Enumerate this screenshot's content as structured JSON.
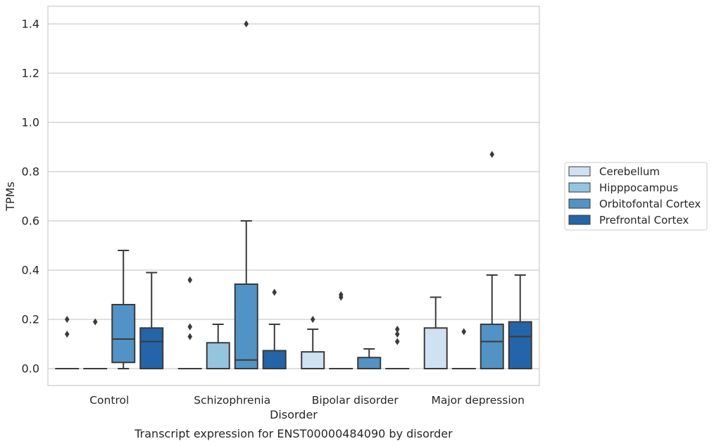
{
  "chart_data": {
    "type": "boxplot",
    "title": "",
    "caption": "Transcript expression for ENST00000484090 by disorder",
    "xlabel": "Disorder",
    "ylabel": "TPMs",
    "ylim": [
      -0.07,
      1.47
    ],
    "yticks": [
      0.0,
      0.2,
      0.4,
      0.6,
      0.8,
      1.0,
      1.2,
      1.4
    ],
    "ytick_labels": [
      "0.0",
      "0.2",
      "0.4",
      "0.6",
      "0.8",
      "1.0",
      "1.2",
      "1.4"
    ],
    "categories": [
      "Control",
      "Schizophrenia",
      "Bipolar disorder",
      "Major depression"
    ],
    "grid": "horizontal",
    "legend_position": "right",
    "series": [
      {
        "name": "Cerebellum",
        "color": "#d0e1f2",
        "boxes": [
          {
            "q1": 0,
            "median": 0,
            "q3": 0,
            "whislo": 0,
            "whishi": 0,
            "fliers": [
              0.14,
              0.2
            ]
          },
          {
            "q1": 0,
            "median": 0,
            "q3": 0,
            "whislo": 0,
            "whishi": 0,
            "fliers": [
              0.13,
              0.17,
              0.36
            ]
          },
          {
            "q1": 0,
            "median": 0,
            "q3": 0.068,
            "whislo": 0,
            "whishi": 0.16,
            "fliers": [
              0.2
            ]
          },
          {
            "q1": 0,
            "median": 0,
            "q3": 0.165,
            "whislo": 0,
            "whishi": 0.29,
            "fliers": []
          }
        ]
      },
      {
        "name": "Hipppocampus",
        "color": "#94c4df",
        "boxes": [
          {
            "q1": 0,
            "median": 0,
            "q3": 0,
            "whislo": 0,
            "whishi": 0,
            "fliers": [
              0.19
            ]
          },
          {
            "q1": 0,
            "median": 0,
            "q3": 0.105,
            "whislo": 0,
            "whishi": 0.18,
            "fliers": []
          },
          {
            "q1": 0,
            "median": 0,
            "q3": 0,
            "whislo": 0,
            "whishi": 0,
            "fliers": [
              0.29,
              0.3
            ]
          },
          {
            "q1": 0,
            "median": 0,
            "q3": 0,
            "whislo": 0,
            "whishi": 0,
            "fliers": [
              0.15
            ]
          }
        ]
      },
      {
        "name": "Orbitofontal Cortex",
        "color": "#5193c4",
        "boxes": [
          {
            "q1": 0.025,
            "median": 0.12,
            "q3": 0.26,
            "whislo": 0,
            "whishi": 0.48,
            "fliers": []
          },
          {
            "q1": 0,
            "median": 0.035,
            "q3": 0.343,
            "whislo": 0,
            "whishi": 0.6,
            "fliers": [
              1.4
            ]
          },
          {
            "q1": 0,
            "median": 0,
            "q3": 0.045,
            "whislo": 0,
            "whishi": 0.08,
            "fliers": []
          },
          {
            "q1": 0,
            "median": 0.11,
            "q3": 0.18,
            "whislo": 0,
            "whishi": 0.38,
            "fliers": [
              0.87
            ]
          }
        ]
      },
      {
        "name": "Prefrontal Cortex",
        "color": "#2464a8",
        "boxes": [
          {
            "q1": 0,
            "median": 0.11,
            "q3": 0.165,
            "whislo": 0,
            "whishi": 0.39,
            "fliers": []
          },
          {
            "q1": 0,
            "median": 0,
            "q3": 0.073,
            "whislo": 0,
            "whishi": 0.18,
            "fliers": [
              0.31
            ]
          },
          {
            "q1": 0,
            "median": 0,
            "q3": 0,
            "whislo": 0,
            "whishi": 0,
            "fliers": [
              0.11,
              0.14,
              0.16
            ]
          },
          {
            "q1": 0,
            "median": 0.13,
            "q3": 0.19,
            "whislo": 0,
            "whishi": 0.38,
            "fliers": []
          }
        ]
      }
    ]
  }
}
